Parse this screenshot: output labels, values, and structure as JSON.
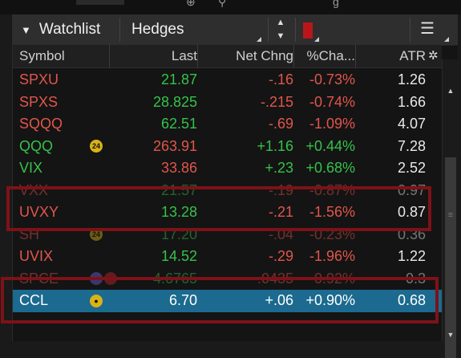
{
  "tabs": {
    "watchlist": "Watchlist",
    "hedges": "Hedges"
  },
  "columns": {
    "symbol": "Symbol",
    "last": "Last",
    "net": "Net Chng",
    "pct": "%Cha...",
    "atr": "ATR"
  },
  "colors": {
    "up": "#35c24a",
    "down": "#e0564c",
    "neutral": "#e8e8e8",
    "selected": "#1c6a8f",
    "highlight": "#7d1218"
  },
  "rows": [
    {
      "symbol": "SPXU",
      "last": "21.87",
      "net": "-.16",
      "pct": "-0.73%",
      "atr": "1.26",
      "sym_dir": "down",
      "last_dir": "up",
      "net_dir": "down"
    },
    {
      "symbol": "SPXS",
      "last": "28.825",
      "net": "-.215",
      "pct": "-0.74%",
      "atr": "1.66",
      "sym_dir": "down",
      "last_dir": "up",
      "net_dir": "down"
    },
    {
      "symbol": "SQQQ",
      "last": "62.51",
      "net": "-.69",
      "pct": "-1.09%",
      "atr": "4.07",
      "sym_dir": "down",
      "last_dir": "up",
      "net_dir": "down"
    },
    {
      "symbol": "QQQ",
      "badge": "24",
      "last": "263.91",
      "net": "+1.16",
      "pct": "+0.44%",
      "atr": "7.28",
      "sym_dir": "up",
      "last_dir": "down",
      "net_dir": "up"
    },
    {
      "symbol": "VIX",
      "last": "33.86",
      "net": "+.23",
      "pct": "+0.68%",
      "atr": "2.52",
      "sym_dir": "up",
      "last_dir": "down",
      "net_dir": "up"
    },
    {
      "symbol": "VXX",
      "last": "21.57",
      "net": "-.19",
      "pct": "-0.87%",
      "atr": "0.97",
      "sym_dir": "down",
      "last_dir": "up",
      "net_dir": "down",
      "faded": true
    },
    {
      "symbol": "UVXY",
      "last": "13.28",
      "net": "-.21",
      "pct": "-1.56%",
      "atr": "0.87",
      "sym_dir": "down",
      "last_dir": "up",
      "net_dir": "down"
    },
    {
      "symbol": "SH",
      "badge": "24",
      "last": "17.20",
      "net": "-.04",
      "pct": "-0.23%",
      "atr": "0.36",
      "sym_dir": "down",
      "last_dir": "up",
      "net_dir": "down",
      "faded": true
    },
    {
      "symbol": "UVIX",
      "last": "14.52",
      "net": "-.29",
      "pct": "-1.96%",
      "atr": "1.22",
      "sym_dir": "down",
      "last_dir": "up",
      "net_dir": "down"
    },
    {
      "symbol": "SPCE",
      "badge": "dual",
      "last": "4.6765",
      "net": "-.0435",
      "pct": "-0.92%",
      "atr": "0.3",
      "sym_dir": "down",
      "last_dir": "up",
      "net_dir": "down",
      "faded": true
    },
    {
      "symbol": "CCL",
      "badge": "user",
      "last": "6.70",
      "net": "+.06",
      "pct": "+0.90%",
      "atr": "0.68",
      "sym_dir": "up",
      "last_dir": "up",
      "net_dir": "up",
      "selected": true
    }
  ]
}
